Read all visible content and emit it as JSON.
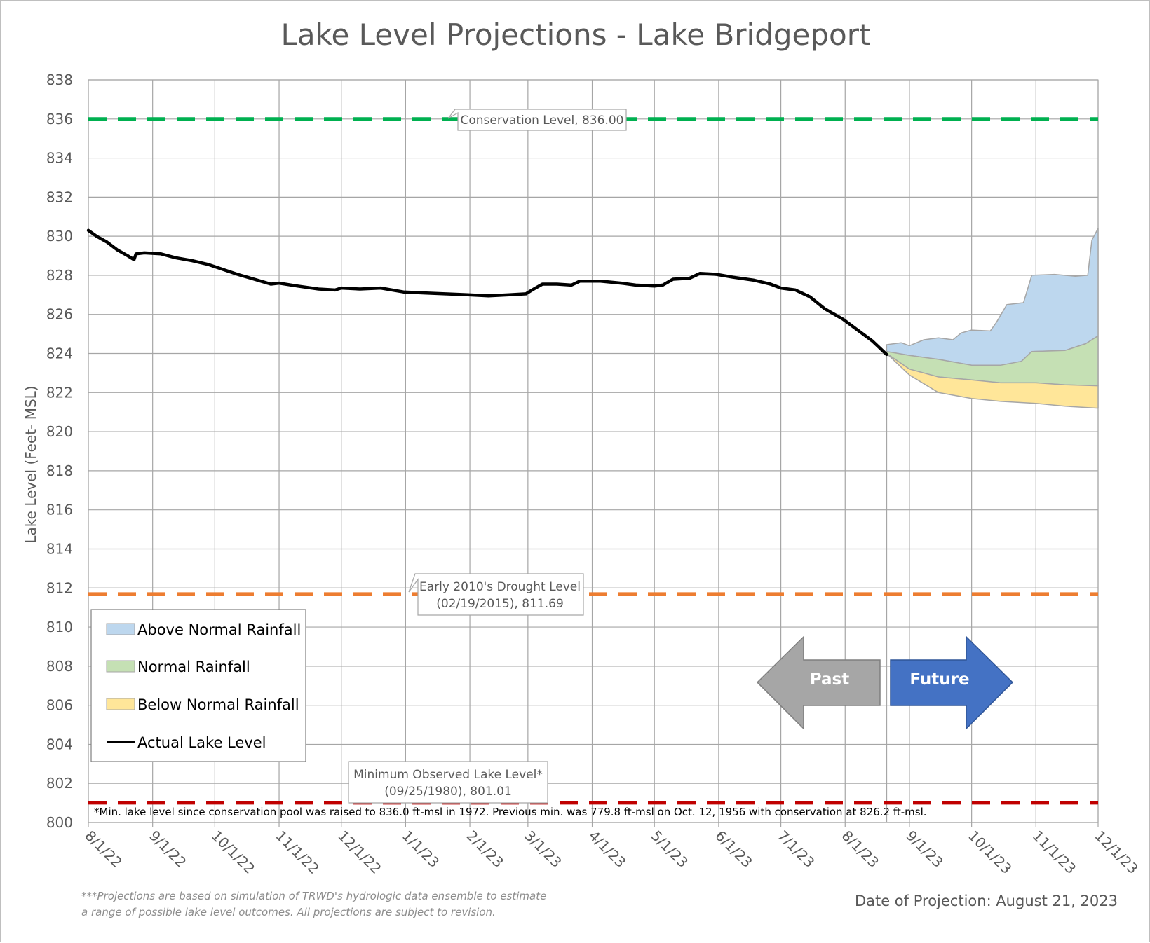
{
  "chart_data": {
    "type": "area",
    "title": "Lake Level Projections - Lake Bridgeport",
    "ylabel": "Lake Level (Feet- MSL)",
    "xlabel": "",
    "ylim": [
      800,
      838
    ],
    "yticks": [
      "800",
      "802",
      "804",
      "806",
      "808",
      "810",
      "812",
      "814",
      "816",
      "818",
      "820",
      "822",
      "824",
      "826",
      "828",
      "830",
      "832",
      "834",
      "836",
      "838"
    ],
    "xticks": [
      {
        "label": "8/1/22",
        "date": "2022-08-01"
      },
      {
        "label": "9/1/22",
        "date": "2022-09-01"
      },
      {
        "label": "10/1/22",
        "date": "2022-10-01"
      },
      {
        "label": "11/1/22",
        "date": "2022-11-01"
      },
      {
        "label": "12/1/22",
        "date": "2022-12-01"
      },
      {
        "label": "1/1/23",
        "date": "2023-01-01"
      },
      {
        "label": "2/1/23",
        "date": "2023-02-01"
      },
      {
        "label": "3/1/23",
        "date": "2023-03-01"
      },
      {
        "label": "4/1/23",
        "date": "2023-04-01"
      },
      {
        "label": "5/1/23",
        "date": "2023-05-01"
      },
      {
        "label": "6/1/23",
        "date": "2023-06-01"
      },
      {
        "label": "7/1/23",
        "date": "2023-07-01"
      },
      {
        "label": "8/1/23",
        "date": "2023-08-01"
      },
      {
        "label": "9/1/23",
        "date": "2023-09-01"
      },
      {
        "label": "10/1/23",
        "date": "2023-10-01"
      },
      {
        "label": "11/1/23",
        "date": "2023-11-01"
      },
      {
        "label": "12/1/23",
        "date": "2023-12-01"
      }
    ],
    "grid": true,
    "legend_position": "bottom-left",
    "legend": [
      {
        "label": "Above Normal Rainfall",
        "color": "#bdd7ee",
        "kind": "area"
      },
      {
        "label": "Normal Rainfall",
        "color": "#c5e0b4",
        "kind": "area"
      },
      {
        "label": "Below Normal Rainfall",
        "color": "#ffe699",
        "kind": "area"
      },
      {
        "label": "Actual Lake Level",
        "color": "#000000",
        "kind": "line"
      }
    ],
    "reference_lines": [
      {
        "label": "Conservation Level, 836.00",
        "value": 836.0,
        "color": "#00b050"
      },
      {
        "label": "Early 2010's Drought Level",
        "label2": "(02/19/2015), 811.69",
        "value": 811.69,
        "color": "#ed7d31"
      },
      {
        "label": "Minimum Observed  Lake Level*",
        "label2": "(09/25/1980), 801.01",
        "value": 801.01,
        "color": "#c00000"
      }
    ],
    "projection_date": "2023-08-21",
    "actual_lake_level": [
      [
        "2022-08-01",
        830.3
      ],
      [
        "2022-08-05",
        830.0
      ],
      [
        "2022-08-10",
        829.7
      ],
      [
        "2022-08-15",
        829.3
      ],
      [
        "2022-08-20",
        829.0
      ],
      [
        "2022-08-23",
        828.8
      ],
      [
        "2022-08-24",
        829.1
      ],
      [
        "2022-08-28",
        829.15
      ],
      [
        "2022-09-05",
        829.1
      ],
      [
        "2022-09-12",
        828.9
      ],
      [
        "2022-09-20",
        828.75
      ],
      [
        "2022-09-28",
        828.55
      ],
      [
        "2022-10-05",
        828.3
      ],
      [
        "2022-10-12",
        828.05
      ],
      [
        "2022-10-20",
        827.8
      ],
      [
        "2022-10-28",
        827.55
      ],
      [
        "2022-11-01",
        827.6
      ],
      [
        "2022-11-10",
        827.45
      ],
      [
        "2022-11-20",
        827.3
      ],
      [
        "2022-11-28",
        827.25
      ],
      [
        "2022-12-01",
        827.35
      ],
      [
        "2022-12-10",
        827.3
      ],
      [
        "2022-12-20",
        827.35
      ],
      [
        "2022-12-31",
        827.15
      ],
      [
        "2023-01-10",
        827.1
      ],
      [
        "2023-01-20",
        827.05
      ],
      [
        "2023-01-31",
        827.0
      ],
      [
        "2023-02-10",
        826.95
      ],
      [
        "2023-02-20",
        827.0
      ],
      [
        "2023-02-28",
        827.05
      ],
      [
        "2023-03-03",
        827.25
      ],
      [
        "2023-03-08",
        827.55
      ],
      [
        "2023-03-15",
        827.55
      ],
      [
        "2023-03-22",
        827.5
      ],
      [
        "2023-03-26",
        827.7
      ],
      [
        "2023-04-05",
        827.7
      ],
      [
        "2023-04-15",
        827.6
      ],
      [
        "2023-04-22",
        827.5
      ],
      [
        "2023-05-01",
        827.45
      ],
      [
        "2023-05-05",
        827.5
      ],
      [
        "2023-05-10",
        827.8
      ],
      [
        "2023-05-18",
        827.85
      ],
      [
        "2023-05-23",
        828.1
      ],
      [
        "2023-05-31",
        828.05
      ],
      [
        "2023-06-08",
        827.9
      ],
      [
        "2023-06-18",
        827.75
      ],
      [
        "2023-06-26",
        827.55
      ],
      [
        "2023-07-01",
        827.35
      ],
      [
        "2023-07-08",
        827.25
      ],
      [
        "2023-07-15",
        826.9
      ],
      [
        "2023-07-22",
        826.3
      ],
      [
        "2023-07-31",
        825.75
      ],
      [
        "2023-08-07",
        825.2
      ],
      [
        "2023-08-14",
        824.65
      ],
      [
        "2023-08-21",
        823.95
      ]
    ],
    "series": [
      {
        "name": "Above Normal Rainfall",
        "color": "#bdd7ee",
        "upper": [
          [
            "2023-08-21",
            824.45
          ],
          [
            "2023-08-28",
            824.55
          ],
          [
            "2023-09-01",
            824.4
          ],
          [
            "2023-09-08",
            824.7
          ],
          [
            "2023-09-15",
            824.8
          ],
          [
            "2023-09-22",
            824.7
          ],
          [
            "2023-09-26",
            825.05
          ],
          [
            "2023-10-01",
            825.2
          ],
          [
            "2023-10-10",
            825.15
          ],
          [
            "2023-10-13",
            825.6
          ],
          [
            "2023-10-18",
            826.5
          ],
          [
            "2023-10-26",
            826.6
          ],
          [
            "2023-10-30",
            828.0
          ],
          [
            "2023-11-10",
            828.05
          ],
          [
            "2023-11-20",
            827.95
          ],
          [
            "2023-11-26",
            828.0
          ],
          [
            "2023-11-28",
            829.8
          ],
          [
            "2023-12-01",
            830.4
          ]
        ],
        "lower": [
          [
            "2023-08-21",
            824.1
          ],
          [
            "2023-09-01",
            823.9
          ],
          [
            "2023-09-15",
            823.7
          ],
          [
            "2023-10-01",
            823.4
          ],
          [
            "2023-10-15",
            823.4
          ],
          [
            "2023-10-25",
            823.6
          ],
          [
            "2023-10-30",
            824.1
          ],
          [
            "2023-11-15",
            824.15
          ],
          [
            "2023-11-25",
            824.5
          ],
          [
            "2023-12-01",
            824.9
          ]
        ]
      },
      {
        "name": "Normal Rainfall",
        "color": "#c5e0b4",
        "upper": [
          [
            "2023-08-21",
            824.1
          ],
          [
            "2023-09-01",
            823.9
          ],
          [
            "2023-09-15",
            823.7
          ],
          [
            "2023-10-01",
            823.4
          ],
          [
            "2023-10-15",
            823.4
          ],
          [
            "2023-10-25",
            823.6
          ],
          [
            "2023-10-30",
            824.1
          ],
          [
            "2023-11-15",
            824.15
          ],
          [
            "2023-11-25",
            824.5
          ],
          [
            "2023-12-01",
            824.9
          ]
        ],
        "lower": [
          [
            "2023-08-21",
            824.0
          ],
          [
            "2023-09-01",
            823.2
          ],
          [
            "2023-09-15",
            822.8
          ],
          [
            "2023-10-01",
            822.65
          ],
          [
            "2023-10-15",
            822.5
          ],
          [
            "2023-11-01",
            822.5
          ],
          [
            "2023-11-15",
            822.4
          ],
          [
            "2023-12-01",
            822.35
          ]
        ]
      },
      {
        "name": "Below Normal Rainfall",
        "color": "#ffe699",
        "upper": [
          [
            "2023-08-21",
            824.0
          ],
          [
            "2023-09-01",
            823.2
          ],
          [
            "2023-09-15",
            822.8
          ],
          [
            "2023-10-01",
            822.65
          ],
          [
            "2023-10-15",
            822.5
          ],
          [
            "2023-11-01",
            822.5
          ],
          [
            "2023-11-15",
            822.4
          ],
          [
            "2023-12-01",
            822.35
          ]
        ],
        "lower": [
          [
            "2023-08-21",
            824.0
          ],
          [
            "2023-09-01",
            822.9
          ],
          [
            "2023-09-15",
            822.0
          ],
          [
            "2023-10-01",
            821.7
          ],
          [
            "2023-10-15",
            821.55
          ],
          [
            "2023-11-01",
            821.45
          ],
          [
            "2023-11-15",
            821.3
          ],
          [
            "2023-12-01",
            821.2
          ]
        ]
      }
    ],
    "arrows": {
      "past": "Past",
      "future": "Future"
    },
    "note": "*Min. lake level since conservation pool was raised to 836.0 ft-msl in 1972.  Previous min. was 779.8 ft-msl on Oct. 12, 1956 with conservation at 826.2 ft-msl.",
    "footnote_lines": [
      "***Projections are based on simulation of TRWD's hydrologic data ensemble to estimate",
      "a range of possible lake level outcomes.  All projections are subject to revision."
    ],
    "date_of_projection": "Date of Projection: August 21, 2023"
  }
}
